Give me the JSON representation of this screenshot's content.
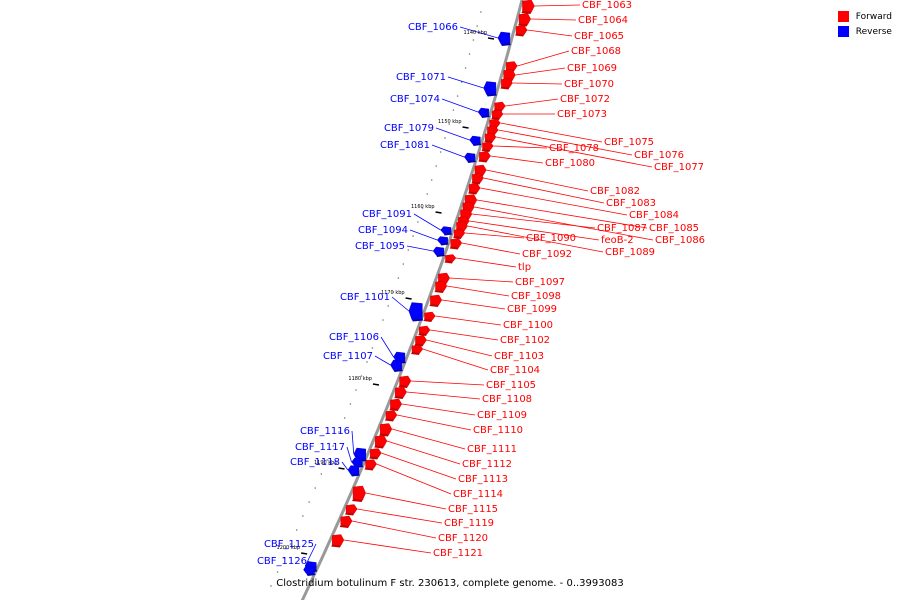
{
  "legend": {
    "forward_label": "Forward",
    "reverse_label": "Reverse",
    "forward_color": "#ff0000",
    "reverse_color": "#0000ff"
  },
  "caption": "Clostridium botulinum F str. 230613, complete genome. - 0..3993083",
  "kbp_ticks": [
    "1140 kbp",
    "1150 kbp",
    "1160 kbp",
    "1170 kbp",
    "1180 kbp",
    "1190 kbp",
    "1200 kbp"
  ],
  "forward_genes": [
    "CBF_1063",
    "CBF_1064",
    "CBF_1065",
    "CBF_1068",
    "CBF_1069",
    "CBF_1070",
    "CBF_1072",
    "CBF_1073",
    "CBF_1075",
    "CBF_1076",
    "CBF_1077",
    "CBF_1078",
    "CBF_1080",
    "CBF_1082",
    "CBF_1083",
    "CBF_1084",
    "CBF_1085",
    "CBF_1086",
    "CBF_1087",
    "feoB-2",
    "CBF_1089",
    "CBF_1090",
    "CBF_1092",
    "tlp",
    "CBF_1097",
    "CBF_1098",
    "CBF_1099",
    "CBF_1100",
    "CBF_1102",
    "CBF_1103",
    "CBF_1104",
    "CBF_1105",
    "CBF_1108",
    "CBF_1109",
    "CBF_1110",
    "CBF_1111",
    "CBF_1112",
    "CBF_1113",
    "CBF_1114",
    "CBF_1115",
    "CBF_1119",
    "CBF_1120",
    "CBF_1121"
  ],
  "reverse_genes": [
    "CBF_1066",
    "CBF_1071",
    "CBF_1074",
    "CBF_1079",
    "CBF_1081",
    "CBF_1091",
    "CBF_1094",
    "CBF_1095",
    "CBF_1101",
    "CBF_1106",
    "CBF_1107",
    "CBF_1116",
    "CBF_1117",
    "CBF_1118",
    "CBF_1125",
    "CBF_1126"
  ]
}
